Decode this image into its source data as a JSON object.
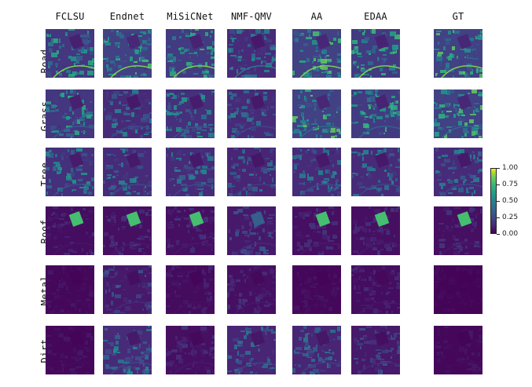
{
  "columns": [
    "FCLSU",
    "Endnet",
    "MiSiCNet",
    "NMF-QMV",
    "AA",
    "EDAA",
    "GT"
  ],
  "rows": [
    "Road",
    "Grass",
    "Tree",
    "Roof",
    "Metal",
    "Dirt"
  ],
  "colorbar": {
    "colormap": "viridis",
    "ticks": [
      "0.00",
      "0.25",
      "0.50",
      "0.75",
      "1.00"
    ]
  },
  "colors": {
    "low": "#440154",
    "mid": "#21918c",
    "high": "#fde725"
  },
  "tile_appearance": [
    [
      0.45,
      0.55,
      0.5,
      0.35,
      0.55,
      0.5,
      0.55
    ],
    [
      0.45,
      0.35,
      0.4,
      0.35,
      0.55,
      0.5,
      0.55
    ],
    [
      0.4,
      0.35,
      0.35,
      0.3,
      0.35,
      0.35,
      0.35
    ],
    [
      0.1,
      0.12,
      0.12,
      0.2,
      0.12,
      0.12,
      0.12
    ],
    [
      0.05,
      0.2,
      0.08,
      0.12,
      0.05,
      0.1,
      0.03
    ],
    [
      0.05,
      0.35,
      0.12,
      0.3,
      0.3,
      0.2,
      0.05
    ]
  ]
}
